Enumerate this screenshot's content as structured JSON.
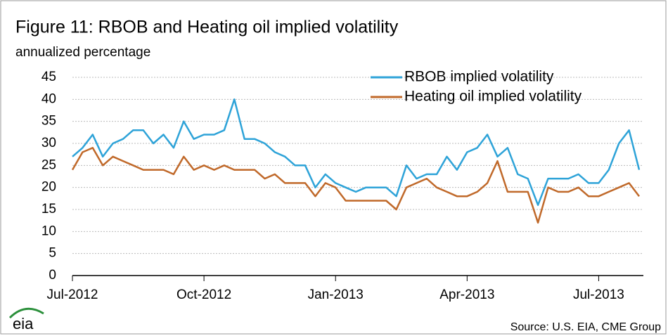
{
  "chart_data": {
    "type": "line",
    "title": "Figure 11: RBOB and Heating oil implied volatility",
    "y_axis_label": "annualized percentage",
    "source": "Source: U.S. EIA, CME Group",
    "logo": "eia",
    "categories": [
      "Jul-2012",
      null,
      null,
      null,
      null,
      null,
      null,
      null,
      null,
      null,
      null,
      null,
      null,
      "Oct-2012",
      null,
      null,
      null,
      null,
      null,
      null,
      null,
      null,
      null,
      null,
      null,
      null,
      "Jan-2013",
      null,
      null,
      null,
      null,
      null,
      null,
      null,
      null,
      null,
      null,
      null,
      null,
      "Apr-2013",
      null,
      null,
      null,
      null,
      null,
      null,
      null,
      null,
      null,
      null,
      null,
      null,
      "Jul-2013",
      null,
      null,
      null,
      null
    ],
    "series": [
      {
        "name": "RBOB implied volatility",
        "color": "#2ea3d8",
        "values": [
          27,
          29,
          32,
          27,
          30,
          31,
          33,
          33,
          30,
          32,
          29,
          35,
          31,
          32,
          32,
          33,
          40,
          31,
          31,
          30,
          28,
          27,
          25,
          25,
          20,
          23,
          21,
          20,
          19,
          20,
          20,
          20,
          18,
          25,
          22,
          23,
          23,
          27,
          24,
          28,
          29,
          32,
          27,
          29,
          23,
          22,
          16,
          22,
          22,
          22,
          23,
          21,
          21,
          24,
          30,
          33,
          24
        ]
      },
      {
        "name": "Heating oil implied volatility",
        "color": "#c0692a",
        "values": [
          24,
          28,
          29,
          25,
          27,
          26,
          25,
          24,
          24,
          24,
          23,
          27,
          24,
          25,
          24,
          25,
          24,
          24,
          24,
          22,
          23,
          21,
          21,
          21,
          18,
          21,
          20,
          17,
          17,
          17,
          17,
          17,
          15,
          20,
          21,
          22,
          20,
          19,
          18,
          18,
          19,
          21,
          26,
          19,
          19,
          19,
          12,
          20,
          19,
          19,
          20,
          18,
          18,
          19,
          20,
          21,
          18
        ]
      }
    ],
    "ylim": [
      0,
      45
    ],
    "yticks": [
      0,
      5,
      10,
      15,
      20,
      25,
      30,
      35,
      40,
      45
    ],
    "grid": true,
    "legend": "top-right"
  }
}
